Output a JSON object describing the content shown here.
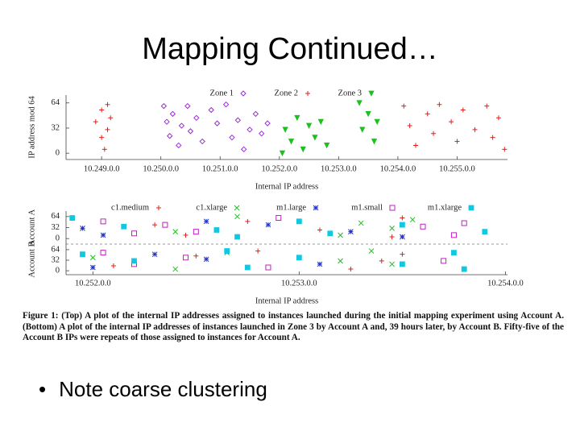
{
  "title": "Mapping Continued…",
  "caption": {
    "label": "Figure 1:",
    "text": "(Top) A plot of the internal IP addresses assigned to instances launched during the initial mapping experiment using Account A. (Bottom) A plot of the internal IP addresses of instances launched in Zone 3 by Account A and, 39 hours later, by Account B. Fifty-five of the Account B IPs were repeats of those assigned to instances for Account A."
  },
  "bullet": "Note coarse clustering",
  "chart_data": [
    {
      "type": "scatter",
      "xlabel": "Internal IP address",
      "ylabel": "IP address mod 64",
      "xlim": [
        248.4,
        255.85
      ],
      "ylim": [
        -8,
        74
      ],
      "xticks": [
        {
          "value": 249,
          "label": "10.249.0.0"
        },
        {
          "value": 250,
          "label": "10.250.0.0"
        },
        {
          "value": 251,
          "label": "10.251.0.0"
        },
        {
          "value": 252,
          "label": "10.252.0.0"
        },
        {
          "value": 253,
          "label": "10.253.0.0"
        },
        {
          "value": 254,
          "label": "10.254.0.0"
        },
        {
          "value": 255,
          "label": "10.255.0.0"
        }
      ],
      "yticks": [
        0,
        32,
        64
      ],
      "series": [
        {
          "name": "Zone 1",
          "color": "#9b30d0",
          "marker": "diamond",
          "x": [
            250.05,
            250.1,
            250.15,
            250.2,
            250.3,
            250.35,
            250.45,
            250.5,
            250.6,
            250.7,
            250.85,
            250.95,
            251.1,
            251.2,
            251.3,
            251.4,
            251.5,
            251.6,
            251.7,
            251.8
          ],
          "values": [
            60,
            40,
            22,
            50,
            10,
            35,
            60,
            28,
            45,
            15,
            55,
            38,
            62,
            20,
            42,
            5,
            30,
            50,
            25,
            38
          ]
        },
        {
          "name": "Zone 2",
          "color": "#e0201b",
          "marker": "plus",
          "x": [
            248.9,
            249.0,
            249.0,
            249.05,
            249.1,
            249.1,
            249.15,
            254.1,
            254.2,
            254.3,
            254.5,
            254.6,
            254.7,
            254.9,
            255.0,
            255.1,
            255.3,
            255.5,
            255.6,
            255.7,
            255.8
          ],
          "values": [
            40,
            20,
            55,
            5,
            62,
            30,
            45,
            60,
            35,
            10,
            50,
            25,
            62,
            40,
            15,
            55,
            30,
            60,
            20,
            45,
            5
          ]
        },
        {
          "name": "Zone 3",
          "color": "#1fbf1f",
          "marker": "triangle-down",
          "x": [
            252.05,
            252.1,
            252.2,
            252.3,
            252.4,
            252.5,
            252.6,
            252.7,
            252.8,
            253.35,
            253.4,
            253.5,
            253.6,
            253.65
          ],
          "values": [
            0,
            30,
            15,
            45,
            5,
            35,
            20,
            40,
            10,
            64,
            30,
            50,
            15,
            40
          ]
        }
      ]
    },
    {
      "type": "scatter",
      "ylabel": "Account A",
      "xlim": [
        251.87,
        254.01
      ],
      "ylim": [
        -16,
        80
      ],
      "yticks": [
        0,
        32,
        64
      ],
      "series": [
        {
          "name": "c1.medium",
          "color": "#e0201b",
          "marker": "plus",
          "x": [
            252.3,
            252.45,
            252.75,
            253.1,
            253.45,
            253.5
          ],
          "values": [
            40,
            10,
            50,
            25,
            5,
            60
          ]
        },
        {
          "name": "c1.xlarge",
          "color": "#1fbf1f",
          "marker": "cross",
          "x": [
            252.4,
            252.7,
            253.2,
            253.3,
            253.45,
            253.55
          ],
          "values": [
            20,
            64,
            10,
            45,
            30,
            55
          ]
        },
        {
          "name": "m1.large",
          "color": "#2030d0",
          "marker": "star",
          "x": [
            251.95,
            252.05,
            252.55,
            252.85,
            253.25,
            253.5
          ],
          "values": [
            30,
            10,
            50,
            40,
            20,
            5
          ]
        },
        {
          "name": "m1.small",
          "color": "#c020c0",
          "marker": "square-open",
          "x": [
            252.05,
            252.2,
            252.35,
            252.5,
            252.9,
            253.6,
            253.75,
            253.8
          ],
          "values": [
            50,
            15,
            40,
            20,
            60,
            35,
            10,
            45
          ]
        },
        {
          "name": "m1.xlarge",
          "color": "#10c8e0",
          "marker": "square",
          "x": [
            251.9,
            252.15,
            252.6,
            252.7,
            253.0,
            253.15,
            253.5,
            253.9
          ],
          "values": [
            60,
            35,
            25,
            5,
            50,
            15,
            40,
            20
          ]
        }
      ]
    },
    {
      "type": "scatter",
      "xlabel": "Internal IP address",
      "ylabel": "Account B",
      "xlim": [
        251.87,
        254.01
      ],
      "ylim": [
        -12,
        81
      ],
      "xticks": [
        {
          "value": 252,
          "label": "10.252.0.0"
        },
        {
          "value": 253,
          "label": "10.253.0.0"
        },
        {
          "value": 254,
          "label": "10.254.0.0"
        }
      ],
      "yticks": [
        0,
        32,
        64
      ],
      "series": [
        {
          "color": "#e0201b",
          "marker": "plus",
          "x": [
            252.1,
            252.5,
            252.8,
            253.25,
            253.4,
            253.5
          ],
          "values": [
            15,
            45,
            60,
            5,
            30,
            50
          ]
        },
        {
          "color": "#1fbf1f",
          "marker": "cross",
          "x": [
            252.0,
            252.4,
            252.65,
            253.2,
            253.35,
            253.45
          ],
          "values": [
            40,
            5,
            55,
            30,
            60,
            20
          ]
        },
        {
          "color": "#2030d0",
          "marker": "star",
          "x": [
            252.0,
            252.3,
            252.55,
            253.1
          ],
          "values": [
            10,
            50,
            35,
            20
          ]
        },
        {
          "color": "#c020c0",
          "marker": "square-open",
          "x": [
            252.05,
            252.2,
            252.45,
            252.85,
            253.7
          ],
          "values": [
            55,
            20,
            40,
            10,
            30
          ]
        },
        {
          "color": "#10c8e0",
          "marker": "square",
          "x": [
            251.95,
            252.2,
            252.65,
            252.75,
            253.0,
            253.5,
            253.75,
            253.8
          ],
          "values": [
            50,
            30,
            60,
            10,
            40,
            20,
            55,
            5
          ]
        }
      ]
    }
  ]
}
